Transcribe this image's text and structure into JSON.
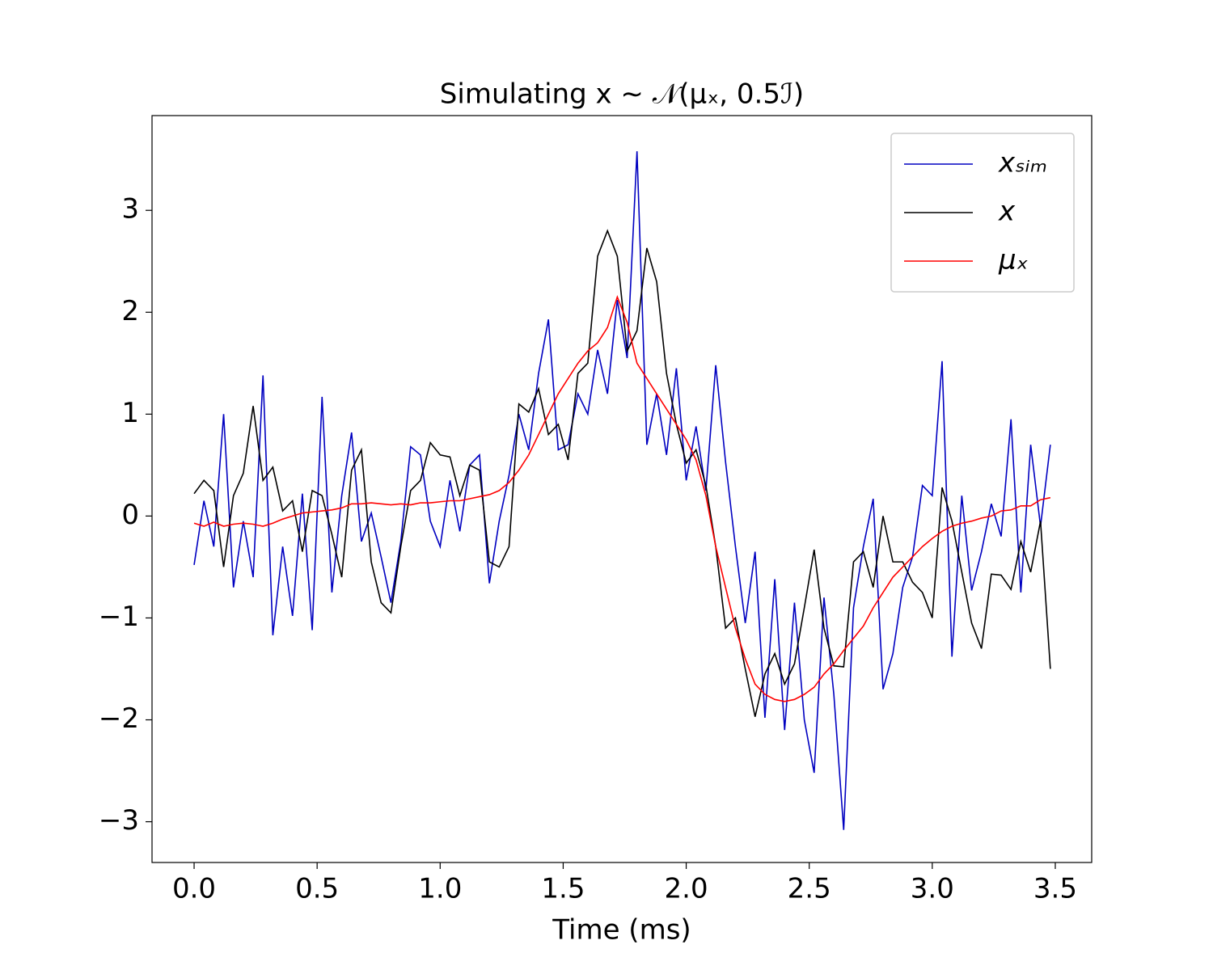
{
  "chart_data": {
    "type": "line",
    "title": "Simulating x ∼ 𝒩(μₓ, 0.5ℐ)",
    "x_label": "Time (ms)",
    "x": [
      0,
      0.04,
      0.08,
      0.12,
      0.16,
      0.2,
      0.24,
      0.28,
      0.32,
      0.36,
      0.4,
      0.44,
      0.48,
      0.52,
      0.56,
      0.6,
      0.64,
      0.68,
      0.72,
      0.76,
      0.8,
      0.84,
      0.88,
      0.92,
      0.96,
      1.0,
      1.04,
      1.08,
      1.12,
      1.16,
      1.2,
      1.24,
      1.28,
      1.32,
      1.36,
      1.4,
      1.44,
      1.48,
      1.52,
      1.56,
      1.6,
      1.64,
      1.68,
      1.72,
      1.76,
      1.8,
      1.84,
      1.88,
      1.92,
      1.96,
      2.0,
      2.04,
      2.08,
      2.12,
      2.16,
      2.2,
      2.24,
      2.28,
      2.32,
      2.36,
      2.4,
      2.44,
      2.48,
      2.52,
      2.56,
      2.6,
      2.64,
      2.68,
      2.72,
      2.76,
      2.8,
      2.84,
      2.88,
      2.92,
      2.96,
      3.0,
      3.04,
      3.08,
      3.12,
      3.16,
      3.2,
      3.24,
      3.28,
      3.32,
      3.36,
      3.4,
      3.44,
      3.48
    ],
    "series": [
      {
        "name": "xₛᵢₘ",
        "color": "#0000c0",
        "values": [
          -0.48,
          0.15,
          -0.3,
          1.0,
          -0.7,
          -0.05,
          -0.6,
          1.38,
          -1.17,
          -0.3,
          -0.98,
          0.22,
          -1.12,
          1.17,
          -0.75,
          0.2,
          0.82,
          -0.25,
          0.03,
          -0.4,
          -0.85,
          -0.25,
          0.68,
          0.6,
          -0.05,
          -0.3,
          0.35,
          -0.15,
          0.5,
          0.6,
          -0.66,
          -0.05,
          0.4,
          1.0,
          0.65,
          1.4,
          1.93,
          0.65,
          0.7,
          1.2,
          1.0,
          1.63,
          1.2,
          2.12,
          1.55,
          3.58,
          0.7,
          1.2,
          0.6,
          1.45,
          0.35,
          0.88,
          0.25,
          1.48,
          0.53,
          -0.3,
          -1.05,
          -0.35,
          -1.98,
          -0.62,
          -2.1,
          -0.85,
          -2.0,
          -2.52,
          -0.8,
          -1.75,
          -3.08,
          -0.9,
          -0.3,
          0.17,
          -1.7,
          -1.35,
          -0.7,
          -0.4,
          0.3,
          0.2,
          1.52,
          -1.38,
          0.2,
          -0.73,
          -0.35,
          0.12,
          -0.2,
          0.95,
          -0.75,
          0.7,
          -0.1,
          0.7
        ]
      },
      {
        "name": "x",
        "color": "#000000",
        "values": [
          0.22,
          0.35,
          0.25,
          -0.5,
          0.2,
          0.42,
          1.08,
          0.35,
          0.48,
          0.05,
          0.15,
          -0.35,
          0.25,
          0.2,
          -0.18,
          -0.6,
          0.45,
          0.65,
          -0.45,
          -0.85,
          -0.95,
          -0.3,
          0.25,
          0.35,
          0.72,
          0.6,
          0.58,
          0.2,
          0.5,
          0.45,
          -0.45,
          -0.5,
          -0.3,
          1.1,
          1.02,
          1.25,
          0.8,
          0.9,
          0.55,
          1.4,
          1.5,
          2.55,
          2.8,
          2.55,
          1.62,
          1.82,
          2.63,
          2.3,
          1.4,
          0.9,
          0.52,
          0.65,
          0.3,
          -0.3,
          -1.1,
          -1.0,
          -1.5,
          -1.97,
          -1.55,
          -1.35,
          -1.65,
          -1.45,
          -0.9,
          -0.33,
          -1.1,
          -1.47,
          -1.48,
          -0.45,
          -0.35,
          -0.7,
          0.0,
          -0.45,
          -0.45,
          -0.65,
          -0.75,
          -1.0,
          0.28,
          -0.05,
          -0.55,
          -1.05,
          -1.3,
          -0.57,
          -0.58,
          -0.72,
          -0.25,
          -0.55,
          -0.05,
          -1.5
        ]
      },
      {
        "name": "μₓ",
        "color": "#ff0000",
        "values": [
          -0.07,
          -0.1,
          -0.06,
          -0.1,
          -0.08,
          -0.07,
          -0.08,
          -0.1,
          -0.07,
          -0.03,
          0.0,
          0.03,
          0.04,
          0.05,
          0.06,
          0.08,
          0.12,
          0.12,
          0.13,
          0.12,
          0.11,
          0.12,
          0.11,
          0.13,
          0.13,
          0.14,
          0.15,
          0.15,
          0.17,
          0.19,
          0.21,
          0.25,
          0.33,
          0.45,
          0.6,
          0.8,
          1.0,
          1.2,
          1.35,
          1.5,
          1.62,
          1.7,
          1.85,
          2.15,
          1.9,
          1.5,
          1.35,
          1.2,
          1.05,
          0.9,
          0.75,
          0.55,
          0.2,
          -0.3,
          -0.7,
          -1.1,
          -1.4,
          -1.65,
          -1.75,
          -1.8,
          -1.82,
          -1.8,
          -1.75,
          -1.68,
          -1.55,
          -1.45,
          -1.32,
          -1.2,
          -1.08,
          -0.9,
          -0.75,
          -0.6,
          -0.5,
          -0.4,
          -0.3,
          -0.22,
          -0.15,
          -0.1,
          -0.07,
          -0.05,
          -0.02,
          0.0,
          0.05,
          0.06,
          0.1,
          0.1,
          0.16,
          0.18
        ]
      }
    ],
    "xlim": [
      -0.171,
      3.648
    ],
    "ylim": [
      -3.4,
      3.93
    ],
    "xticks": [
      {
        "value": 0,
        "label": "0.0"
      },
      0.5,
      {
        "value": 1,
        "label": "1.0"
      },
      1.5,
      {
        "value": 2,
        "label": "2.0"
      },
      2.5,
      {
        "value": 3,
        "label": "3.0"
      },
      3.5
    ],
    "yticks": [
      {
        "value": -3,
        "label": "−3"
      },
      {
        "value": -2,
        "label": "−2"
      },
      {
        "value": -1,
        "label": "−1"
      },
      0,
      1,
      2,
      3
    ],
    "legend": "upper right",
    "grid": false
  }
}
